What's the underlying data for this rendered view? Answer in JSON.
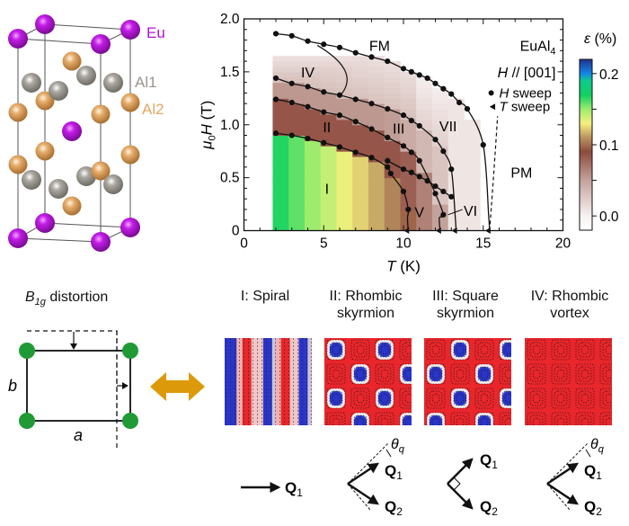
{
  "crystal": {
    "labels": {
      "eu": "Eu",
      "al1": "Al1",
      "al2": "Al2"
    },
    "colors": {
      "eu": "#b010d8",
      "al1": "#9a968f",
      "al2": "#e2a867"
    }
  },
  "chart_data": {
    "type": "scatter",
    "title": "",
    "xlabel": "T (K)",
    "ylabel": "μ0H (T)",
    "xlim": [
      0,
      20
    ],
    "ylim": [
      0,
      2.0
    ],
    "xticks": [
      0,
      5,
      10,
      15,
      20
    ],
    "yticks": [
      0,
      0.5,
      1.0,
      1.5,
      2.0
    ],
    "ytick_labels": [
      "0",
      "0.5",
      "1.0",
      "1.5",
      "2.0"
    ],
    "annotations": {
      "material": "EuAl4",
      "field_direction": "H // [001]",
      "legend_h": "H sweep",
      "legend_t": "T sweep",
      "phases": [
        {
          "label": "FM",
          "T": 8.5,
          "H": 1.75
        },
        {
          "label": "IV",
          "T": 4.0,
          "H": 1.5
        },
        {
          "label": "II",
          "T": 5.2,
          "H": 0.98
        },
        {
          "label": "III",
          "T": 9.7,
          "H": 0.97
        },
        {
          "label": "VII",
          "T": 12.8,
          "H": 0.99
        },
        {
          "label": "I",
          "T": 5.2,
          "H": 0.4
        },
        {
          "label": "V",
          "T": 11.0,
          "H": 0.18
        },
        {
          "label": "VI",
          "T": 14.2,
          "H": 0.19
        },
        {
          "label": "PM",
          "T": 17.4,
          "H": 0.55
        }
      ]
    },
    "series": [
      {
        "name": "FM boundary (H sweep)",
        "T": [
          2,
          3,
          4,
          5,
          6,
          7,
          8,
          9,
          10,
          10.5,
          11,
          11.5,
          12,
          12.5,
          13,
          13.5,
          14,
          15
        ],
        "H": [
          1.86,
          1.84,
          1.79,
          1.76,
          1.73,
          1.68,
          1.64,
          1.6,
          1.53,
          1.5,
          1.47,
          1.44,
          1.39,
          1.34,
          1.29,
          1.21,
          1.15,
          0.81
        ],
        "end_T_sweep": 15.4
      },
      {
        "name": "IV-II / VII boundary (H sweep)",
        "T": [
          2,
          3,
          4,
          5,
          6,
          7,
          8,
          9,
          10,
          10.5,
          11,
          12,
          12.5,
          13
        ],
        "H": [
          1.44,
          1.39,
          1.36,
          1.31,
          1.28,
          1.24,
          1.2,
          1.15,
          1.09,
          1.04,
          0.99,
          0.86,
          0.75,
          0.58
        ],
        "end_T_sweep": 13.3
      },
      {
        "name": "II-III / VI boundary (H sweep)",
        "T": [
          2,
          3,
          4,
          5,
          6,
          7,
          8,
          9,
          10,
          10.5,
          11,
          12,
          12.5
        ],
        "H": [
          1.24,
          1.21,
          1.17,
          1.12,
          1.09,
          1.03,
          0.96,
          0.88,
          0.8,
          0.74,
          0.66,
          0.35,
          0.15
        ],
        "end_T_sweep": 12.3
      },
      {
        "name": "III-V boundary (H sweep)",
        "T": [
          9,
          10,
          10.5,
          11,
          11.5,
          12,
          12.5,
          13
        ],
        "H": [
          0.66,
          0.58,
          0.55,
          0.51,
          0.47,
          0.42,
          0.37,
          0.32
        ]
      },
      {
        "name": "I boundary (H sweep)",
        "T": [
          2,
          3,
          4,
          5,
          6,
          7,
          8,
          9,
          9.2,
          10,
          10.3
        ],
        "H": [
          0.92,
          0.9,
          0.87,
          0.83,
          0.79,
          0.74,
          0.69,
          0.6,
          0.54,
          0.37,
          0.2
        ],
        "end_T_sweep": 10.3
      }
    ],
    "iv_boundary": {
      "T": [
        4.6,
        6.4,
        6.0
      ],
      "H": [
        1.75,
        1.52,
        1.27
      ]
    },
    "dashed_line": {
      "T": [
        15.4,
        15.9
      ],
      "H": [
        0,
        1.08
      ]
    },
    "colorbar": {
      "label": "ε (%)",
      "ticks": [
        0.0,
        0.1,
        0.2
      ],
      "tick_labels": [
        "0.0",
        "0.1",
        "0.2"
      ],
      "range": [
        -0.02,
        0.22
      ],
      "stops": [
        {
          "v": -0.02,
          "c": "#ffffff"
        },
        {
          "v": 0.0,
          "c": "#f7f1f1"
        },
        {
          "v": 0.05,
          "c": "#c4a39c"
        },
        {
          "v": 0.09,
          "c": "#8e4a3c"
        },
        {
          "v": 0.11,
          "c": "#b99360"
        },
        {
          "v": 0.13,
          "c": "#f6f07e"
        },
        {
          "v": 0.15,
          "c": "#9cec6e"
        },
        {
          "v": 0.17,
          "c": "#0fd060"
        },
        {
          "v": 0.19,
          "c": "#0fc98e"
        },
        {
          "v": 0.2,
          "c": "#1186e6"
        },
        {
          "v": 0.22,
          "c": "#23308e"
        }
      ]
    }
  },
  "distortion": {
    "title_main": "B",
    "title_sub": "1g",
    "title_rest": " distortion",
    "label_a": "a",
    "label_b": "b",
    "node_color": "#1f9a34",
    "arrow_color": "#dc9a0a"
  },
  "textures": [
    {
      "title": "I: Spiral",
      "title2": "",
      "type": "spiral"
    },
    {
      "title": "II: Rhombic",
      "title2": "skyrmion",
      "type": "skyrmion"
    },
    {
      "title": "III: Square",
      "title2": "skyrmion",
      "type": "square"
    },
    {
      "title": "IV: Rhombic",
      "title2": "vortex",
      "type": "vortex"
    }
  ],
  "qvectors": {
    "q1": "Q",
    "q1_sub": "1",
    "q2": "Q",
    "q2_sub": "2",
    "theta": "θ",
    "theta_sub": "q"
  }
}
